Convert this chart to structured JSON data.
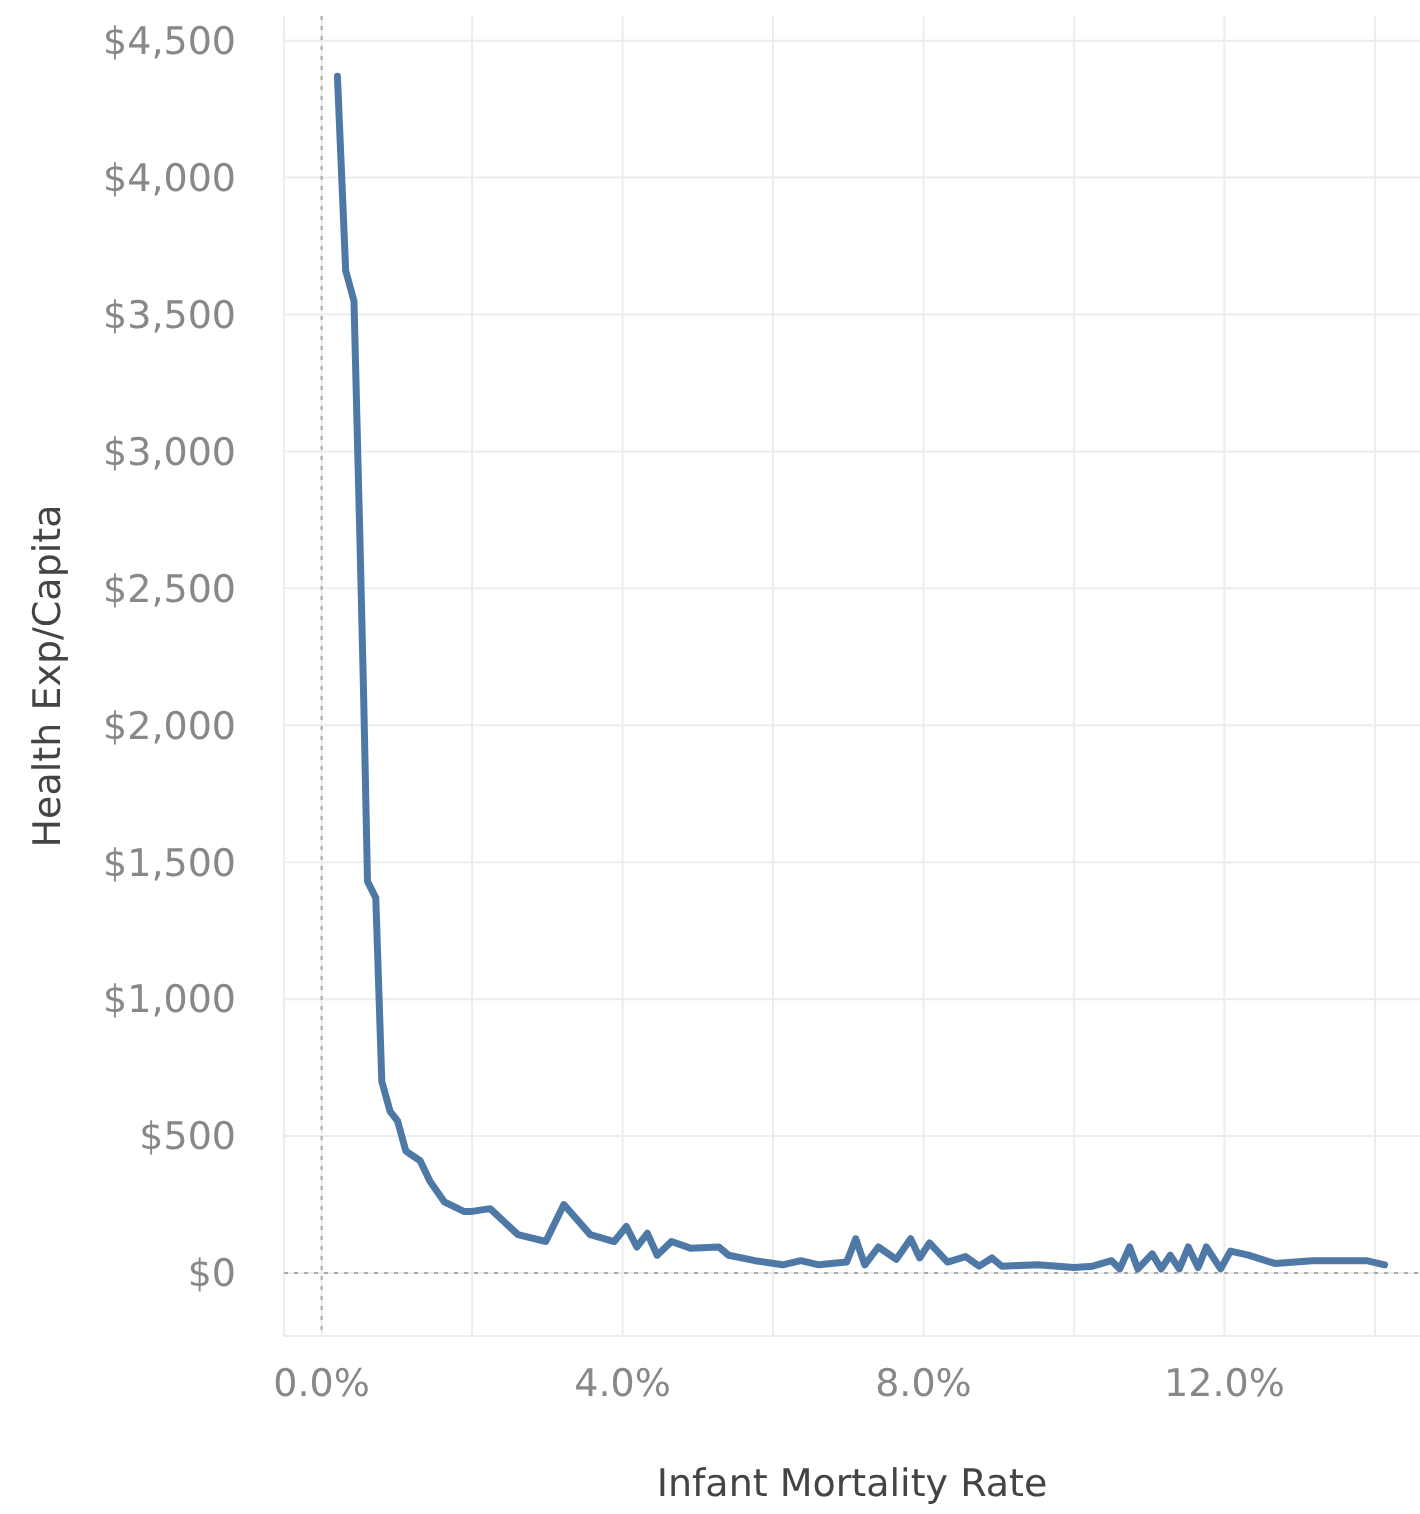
{
  "chart_data": {
    "type": "line",
    "xlabel": "Infant Mortality Rate",
    "ylabel": "Health Exp/Capita",
    "xlim": [
      -0.5,
      14.6
    ],
    "ylim": [
      -230,
      4590
    ],
    "xticks": [
      {
        "value": 0,
        "label": "0.0%"
      },
      {
        "value": 2,
        "label": null
      },
      {
        "value": 4,
        "label": "4.0%"
      },
      {
        "value": 6,
        "label": null
      },
      {
        "value": 8,
        "label": "8.0%"
      },
      {
        "value": 10,
        "label": null
      },
      {
        "value": 12,
        "label": "12.0%"
      },
      {
        "value": 14,
        "label": null
      }
    ],
    "yticks": [
      {
        "value": 0,
        "label": "$0"
      },
      {
        "value": 500,
        "label": "$500"
      },
      {
        "value": 1000,
        "label": "$1,000"
      },
      {
        "value": 1500,
        "label": "$1,500"
      },
      {
        "value": 2000,
        "label": "$2,000"
      },
      {
        "value": 2500,
        "label": "$2,500"
      },
      {
        "value": 3000,
        "label": "$3,000"
      },
      {
        "value": 3500,
        "label": "$3,500"
      },
      {
        "value": 4000,
        "label": "$4,000"
      },
      {
        "value": 4500,
        "label": "$4,500"
      }
    ],
    "grid": true,
    "line_style": "solid",
    "marker": "none",
    "series": [
      {
        "color": "#4e79a7",
        "x": [
          0.21,
          0.32,
          0.43,
          0.51,
          0.56,
          0.61,
          0.72,
          0.8,
          0.91,
          1.01,
          1.12,
          1.31,
          1.44,
          1.63,
          1.89,
          2.0,
          2.24,
          2.61,
          2.98,
          3.22,
          3.57,
          3.89,
          4.05,
          4.19,
          4.33,
          4.46,
          4.65,
          4.91,
          5.28,
          5.41,
          5.76,
          6.13,
          6.37,
          6.61,
          6.98,
          7.1,
          7.22,
          7.4,
          7.64,
          7.83,
          7.95,
          8.08,
          8.32,
          8.56,
          8.74,
          8.91,
          9.04,
          9.52,
          10.0,
          10.25,
          10.5,
          10.61,
          10.74,
          10.85,
          11.04,
          11.16,
          11.28,
          11.4,
          11.52,
          11.65,
          11.76,
          11.95,
          12.08,
          12.32,
          12.67,
          13.17,
          13.89,
          14.13
        ],
        "values": [
          4370,
          3660,
          3550,
          2670,
          2090,
          1430,
          1370,
          700,
          590,
          555,
          445,
          410,
          335,
          260,
          225,
          225,
          235,
          140,
          115,
          250,
          140,
          115,
          170,
          95,
          145,
          65,
          115,
          90,
          95,
          65,
          45,
          30,
          45,
          30,
          40,
          125,
          30,
          95,
          50,
          125,
          55,
          110,
          40,
          60,
          25,
          55,
          25,
          30,
          20,
          25,
          45,
          15,
          95,
          15,
          70,
          15,
          65,
          15,
          95,
          20,
          95,
          15,
          80,
          65,
          35,
          45,
          45,
          30
        ]
      }
    ]
  }
}
